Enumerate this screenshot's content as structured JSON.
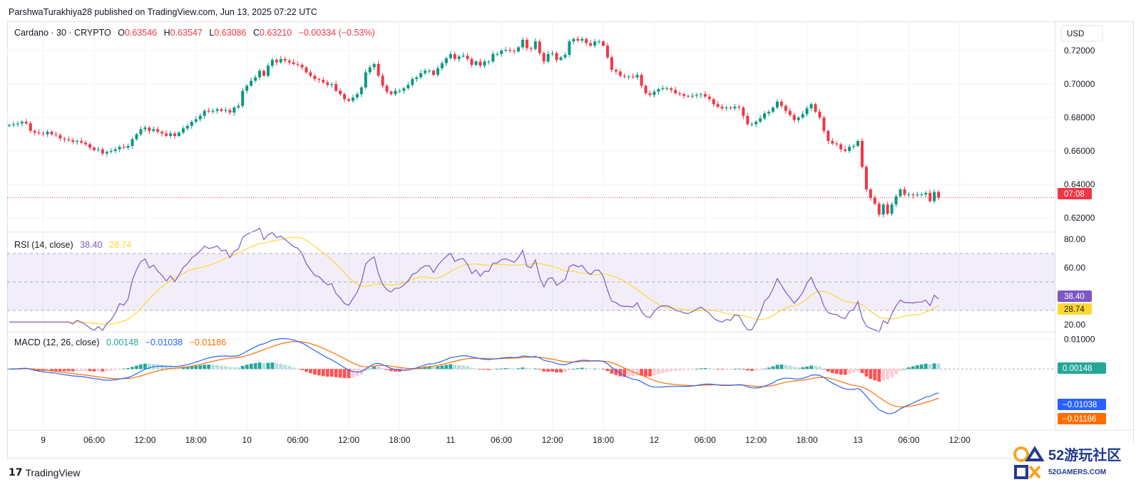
{
  "header": {
    "publish_line": "ParshwaTurakhiya28 published on TradingView.com, Jun 13, 2025 07:22 UTC"
  },
  "legend": {
    "symbol": "Cardano · 30 · CRYPTO",
    "o_label": "O",
    "o_value": "0.63546",
    "h_label": "H",
    "h_value": "0.63547",
    "l_label": "L",
    "l_value": "0.63086",
    "c_label": "C",
    "c_value": "0.63210",
    "change": "−0.00334 (−0.53%)"
  },
  "currency_button": "USD",
  "price_countdown": "07:08",
  "rsi_legend": {
    "label": "RSI (14, close)",
    "rsi": "38.40",
    "ma": "28.74"
  },
  "macd_legend": {
    "label": "MACD (12, 26, close)",
    "hist": "0.00148",
    "macd": "−0.01038",
    "signal": "−0.01186"
  },
  "footer": {
    "brand": "TradingView",
    "logo": "17"
  },
  "watermark": {
    "text": "52游玩社区",
    "url": "52GAMERS.COM"
  },
  "colors": {
    "up": "#089981",
    "down": "#f23645",
    "rsi_line": "#7e57c2",
    "rsi_ma": "#fdd835",
    "macd_line": "#2962ff",
    "signal_line": "#ff6d00",
    "hist_up": "#26a69a",
    "hist_up_light": "#b2dfdb",
    "hist_down": "#ff5252",
    "hist_down_light": "#ffcdd2"
  },
  "chart_data": [
    {
      "type": "candlestick",
      "title": "Cardano · 30 · CRYPTO",
      "ylabel": "USD",
      "x_tick_labels": [
        "9",
        "06:00",
        "12:00",
        "18:00",
        "10",
        "06:00",
        "12:00",
        "18:00",
        "11",
        "06:00",
        "12:00",
        "18:00",
        "12",
        "06:00",
        "12:00",
        "18:00",
        "13",
        "06:00",
        "12:00"
      ],
      "y_tick_labels": [
        "0.72000",
        "0.70000",
        "0.68000",
        "0.66000",
        "0.64000",
        "0.62000"
      ],
      "ylim": [
        0.6115,
        0.7375
      ],
      "last_price": 0.6321,
      "candles_close": [
        0.6755,
        0.676,
        0.6765,
        0.6775,
        0.6765,
        0.672,
        0.671,
        0.6705,
        0.67,
        0.6715,
        0.67,
        0.6695,
        0.6675,
        0.667,
        0.6665,
        0.6655,
        0.666,
        0.665,
        0.664,
        0.662,
        0.6605,
        0.661,
        0.6585,
        0.6595,
        0.66,
        0.661,
        0.6625,
        0.662,
        0.663,
        0.667,
        0.67,
        0.673,
        0.674,
        0.672,
        0.673,
        0.6715,
        0.6705,
        0.669,
        0.6705,
        0.669,
        0.671,
        0.6735,
        0.675,
        0.6775,
        0.679,
        0.681,
        0.684,
        0.6835,
        0.684,
        0.685,
        0.684,
        0.6845,
        0.683,
        0.686,
        0.687,
        0.696,
        0.699,
        0.702,
        0.704,
        0.708,
        0.705,
        0.711,
        0.7145,
        0.713,
        0.715,
        0.714,
        0.713,
        0.712,
        0.7115,
        0.71,
        0.707,
        0.705,
        0.703,
        0.7025,
        0.701,
        0.6995,
        0.7,
        0.696,
        0.694,
        0.691,
        0.69,
        0.692,
        0.694,
        0.698,
        0.707,
        0.71,
        0.712,
        0.705,
        0.699,
        0.6955,
        0.694,
        0.696,
        0.696,
        0.6975,
        0.6995,
        0.703,
        0.704,
        0.7065,
        0.708,
        0.708,
        0.7055,
        0.7095,
        0.7125,
        0.7155,
        0.718,
        0.715,
        0.7165,
        0.717,
        0.715,
        0.7115,
        0.7135,
        0.711,
        0.7135,
        0.7135,
        0.718,
        0.718,
        0.72,
        0.7205,
        0.72,
        0.7195,
        0.722,
        0.7265,
        0.7215,
        0.721,
        0.7255,
        0.7185,
        0.7135,
        0.718,
        0.7185,
        0.7145,
        0.716,
        0.7175,
        0.7255,
        0.727,
        0.726,
        0.727,
        0.7245,
        0.723,
        0.7255,
        0.7255,
        0.723,
        0.716,
        0.7085,
        0.7075,
        0.705,
        0.7045,
        0.7045,
        0.704,
        0.7055,
        0.699,
        0.6945,
        0.6935,
        0.6955,
        0.697,
        0.6975,
        0.6975,
        0.6965,
        0.6945,
        0.694,
        0.693,
        0.6925,
        0.693,
        0.6935,
        0.694,
        0.6925,
        0.691,
        0.688,
        0.6865,
        0.6855,
        0.686,
        0.6855,
        0.6865,
        0.686,
        0.681,
        0.676,
        0.676,
        0.6775,
        0.6795,
        0.6825,
        0.6835,
        0.686,
        0.6895,
        0.687,
        0.684,
        0.6815,
        0.6785,
        0.68,
        0.682,
        0.6855,
        0.688,
        0.6835,
        0.68,
        0.672,
        0.666,
        0.6645,
        0.664,
        0.661,
        0.66,
        0.6625,
        0.663,
        0.666,
        0.6505,
        0.637,
        0.632,
        0.6285,
        0.622,
        0.628,
        0.6225,
        0.628,
        0.633,
        0.637,
        0.634,
        0.634,
        0.6335,
        0.634,
        0.634,
        0.635,
        0.63,
        0.6355,
        0.6321
      ]
    },
    {
      "type": "line",
      "title": "RSI (14, close)",
      "y_tick_labels": [
        "80.00",
        "60.00",
        "20.00"
      ],
      "ylim": [
        15,
        85
      ],
      "band": [
        30,
        70
      ],
      "middle": 50,
      "last_rsi": 38.4,
      "last_ma": 28.74
    },
    {
      "type": "line",
      "title": "MACD (12, 26, close)",
      "y_tick_labels": [
        "0.01000"
      ],
      "ylim": [
        -0.0205,
        0.0125
      ],
      "zero_level": 0,
      "last_hist": 0.00148,
      "last_macd": -0.01038,
      "last_signal": -0.01186
    }
  ]
}
